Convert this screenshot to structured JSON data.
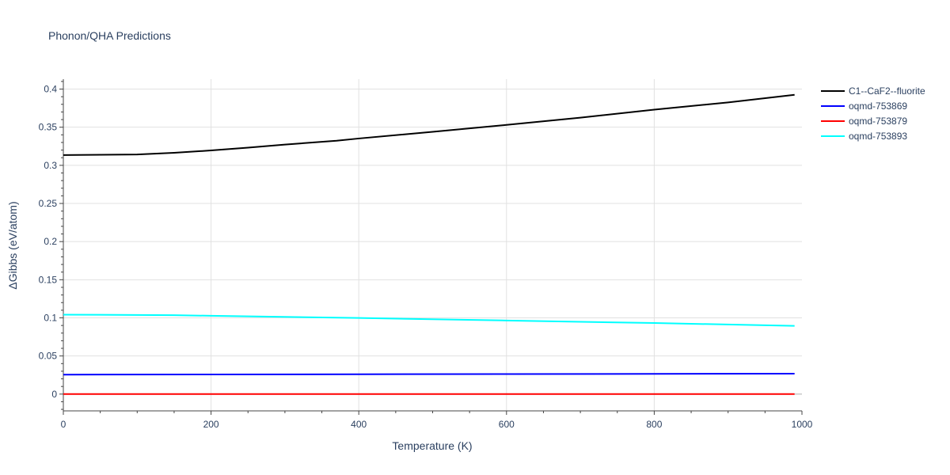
{
  "chart_data": {
    "type": "line",
    "title": "Phonon/QHA Predictions",
    "xlabel": "Temperature (K)",
    "ylabel": "ΔGibbs (eV/atom)",
    "xlim": [
      0,
      1000
    ],
    "ylim": [
      -0.022,
      0.413
    ],
    "x_ticks": [
      0,
      200,
      400,
      600,
      800,
      1000
    ],
    "x_tick_labels": [
      "0",
      "200",
      "400",
      "600",
      "800",
      "1000"
    ],
    "y_ticks": [
      0,
      0.05,
      0.1,
      0.15,
      0.2,
      0.25,
      0.3,
      0.35,
      0.4
    ],
    "y_tick_labels": [
      "0",
      "0.05",
      "0.1",
      "0.15",
      "0.2",
      "0.25",
      "0.3",
      "0.35",
      "0.4"
    ],
    "grid": true,
    "legend_position": "top-right",
    "series": [
      {
        "name": "C1--CaF2--fluorite",
        "color": "#000000",
        "x": [
          0,
          50,
          100,
          150,
          200,
          250,
          300,
          370,
          400,
          500,
          600,
          700,
          800,
          900,
          990
        ],
        "y": [
          0.3135,
          0.3138,
          0.3143,
          0.3165,
          0.3195,
          0.3232,
          0.3272,
          0.3323,
          0.3352,
          0.344,
          0.353,
          0.3625,
          0.373,
          0.3825,
          0.3925
        ]
      },
      {
        "name": "oqmd-753869",
        "color": "#0000ff",
        "x": [
          0,
          200,
          400,
          600,
          800,
          990
        ],
        "y": [
          0.0255,
          0.0258,
          0.026,
          0.0263,
          0.0265,
          0.0268
        ]
      },
      {
        "name": "oqmd-753879",
        "color": "#ff0000",
        "x": [
          0,
          200,
          400,
          600,
          800,
          990
        ],
        "y": [
          0,
          0,
          0,
          0,
          0,
          0
        ]
      },
      {
        "name": "oqmd-753893",
        "color": "#00ffff",
        "x": [
          0,
          150,
          200,
          400,
          600,
          800,
          990
        ],
        "y": [
          0.1042,
          0.1035,
          0.1027,
          0.0998,
          0.0965,
          0.0932,
          0.0895
        ]
      }
    ]
  }
}
